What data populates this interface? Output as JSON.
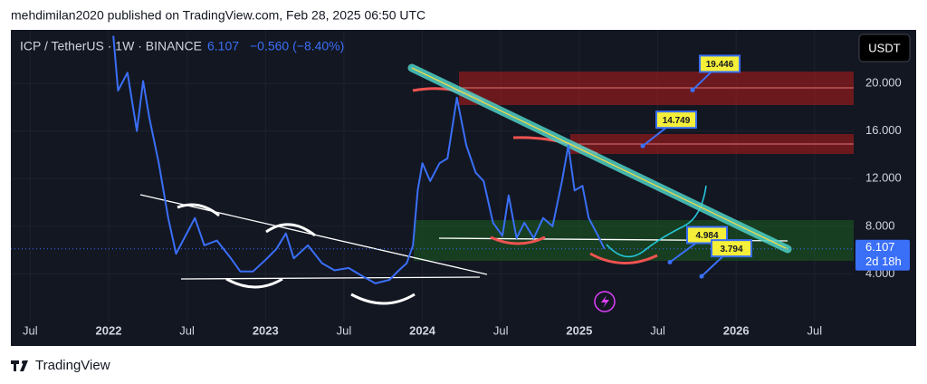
{
  "header": "mehdimilan2020 published on TradingView.com, Feb 28, 2025 06:50 UTC",
  "footer": "TradingView",
  "chart_data": {
    "type": "line",
    "title": "ICP / TetherUS · 1W · BINANCE",
    "last_price": 6.107,
    "change": "−0.560 (−8.40%)",
    "currency": "USDT",
    "countdown": "2d 18h",
    "color": "#3a6ff7",
    "x": [
      2022.03,
      2022.06,
      2022.12,
      2022.18,
      2022.22,
      2022.26,
      2022.32,
      2022.38,
      2022.43,
      2022.49,
      2022.55,
      2022.61,
      2022.69,
      2022.78,
      2022.84,
      2022.92,
      2023.01,
      2023.07,
      2023.13,
      2023.18,
      2023.27,
      2023.36,
      2023.44,
      2023.53,
      2023.62,
      2023.7,
      2023.79,
      2023.85,
      2023.9,
      2023.94,
      2023.97,
      2024.0,
      2024.05,
      2024.11,
      2024.16,
      2024.22,
      2024.28,
      2024.34,
      2024.39,
      2024.45,
      2024.51,
      2024.55,
      2024.6,
      2024.65,
      2024.71,
      2024.77,
      2024.83,
      2024.89,
      2024.93,
      2024.97,
      2025.02,
      2025.06,
      2025.12,
      2025.16
    ],
    "values": [
      24.0,
      19.4,
      20.9,
      16.0,
      20.2,
      17.1,
      13.3,
      8.7,
      5.7,
      7.2,
      8.7,
      6.4,
      6.8,
      5.3,
      4.2,
      4.2,
      5.3,
      6.1,
      7.4,
      5.3,
      6.4,
      4.9,
      4.3,
      4.5,
      3.8,
      3.2,
      3.5,
      4.3,
      4.9,
      6.4,
      11.0,
      13.3,
      11.8,
      13.3,
      13.7,
      18.8,
      14.8,
      12.5,
      11.8,
      8.3,
      7.2,
      10.6,
      7.0,
      8.3,
      7.0,
      8.7,
      8.0,
      11.8,
      14.8,
      11.0,
      11.4,
      8.7,
      7.2,
      6.107
    ],
    "price_labels": [
      19.446,
      14.749,
      4.984,
      3.794
    ],
    "xlim": [
      2021.377,
      2026.749
    ],
    "ylim": [
      0,
      24.5
    ],
    "xticks": [
      {
        "value": 2021.5,
        "label": "Jul"
      },
      2022,
      {
        "value": 2022.5,
        "label": "Jul"
      },
      2023,
      {
        "value": 2023.5,
        "label": "Jul"
      },
      2024,
      {
        "value": 2024.5,
        "label": "Jul"
      },
      2025,
      {
        "value": 2025.5,
        "label": "Jul"
      },
      2026,
      {
        "value": 2026.5,
        "label": "Jul"
      }
    ],
    "yticks": [
      {
        "value": 4,
        "label": "4.000"
      },
      {
        "value": 8,
        "label": "8.000"
      },
      {
        "value": 12,
        "label": "12.000"
      },
      {
        "value": 16,
        "label": "16.000"
      },
      {
        "value": 20,
        "label": "20.000"
      }
    ],
    "grid": true
  }
}
